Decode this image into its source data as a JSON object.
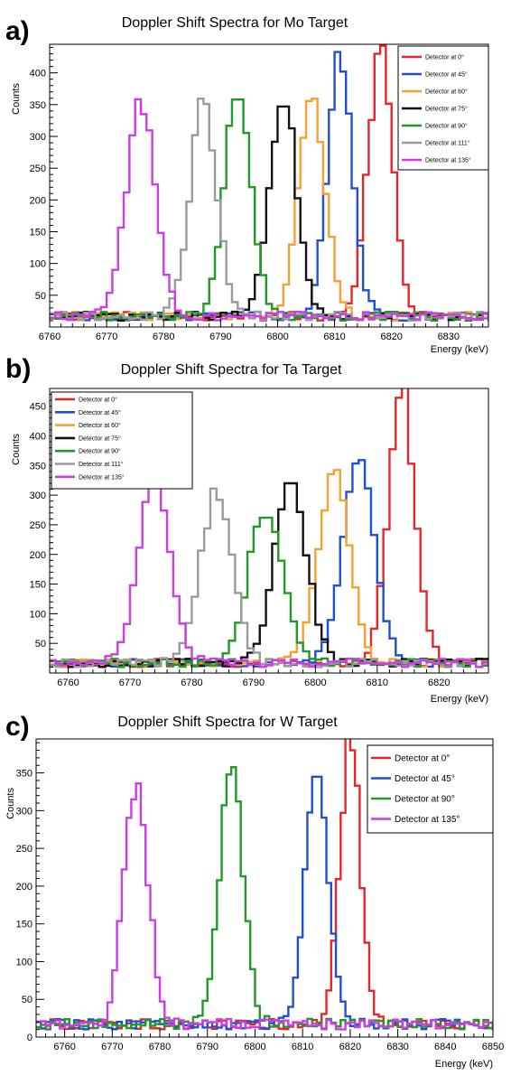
{
  "chart_data": [
    {
      "type": "line",
      "panel_label": "a)",
      "title": "Doppler Shift Spectra for Mo Target",
      "xlabel": "Energy (keV)",
      "ylabel": "Counts",
      "xlim": [
        6760,
        6837
      ],
      "ylim": [
        0,
        445
      ],
      "bin_width": 1,
      "x_ticks": [
        6760,
        6770,
        6780,
        6790,
        6800,
        6810,
        6820,
        6830
      ],
      "y_ticks": [
        50,
        100,
        150,
        200,
        250,
        300,
        350,
        400
      ],
      "legend": "top-right",
      "legend_font": 7,
      "grid": false,
      "series": [
        {
          "name": "Detector at 0°",
          "color": "#e8252a",
          "peak_center": 6818,
          "peak_height": 430,
          "sigma": 2.2
        },
        {
          "name": "Detector at 45°",
          "color": "#1e4fd6",
          "peak_center": 6811,
          "peak_height": 402,
          "sigma": 2.2
        },
        {
          "name": "Detector at 60°",
          "color": "#f7a030",
          "peak_center": 6806,
          "peak_height": 337,
          "sigma": 2.4
        },
        {
          "name": "Detector at 75°",
          "color": "#111111",
          "peak_center": 6801,
          "peak_height": 347,
          "sigma": 2.4
        },
        {
          "name": "Detector at 90°",
          "color": "#1f9a24",
          "peak_center": 6793,
          "peak_height": 358,
          "sigma": 2.4
        },
        {
          "name": "Detector at 111°",
          "color": "#9a9a9a",
          "peak_center": 6787,
          "peak_height": 343,
          "sigma": 2.4
        },
        {
          "name": "Detector at 135°",
          "color": "#cc3de8",
          "peak_center": 6776,
          "peak_height": 335,
          "sigma": 2.6
        }
      ]
    },
    {
      "type": "line",
      "panel_label": "b)",
      "title": "Doppler Shift Spectra for Ta Target",
      "xlabel": "Energy (keV)",
      "ylabel": "Counts",
      "xlim": [
        6757,
        6828
      ],
      "ylim": [
        0,
        480
      ],
      "bin_width": 1,
      "x_ticks": [
        6760,
        6770,
        6780,
        6790,
        6800,
        6810,
        6820
      ],
      "y_ticks": [
        50,
        100,
        150,
        200,
        250,
        300,
        350,
        400,
        450
      ],
      "legend": "top-left",
      "legend_font": 7,
      "grid": false,
      "series": [
        {
          "name": "Detector at 0°",
          "color": "#e8252a",
          "peak_center": 6814,
          "peak_height": 462,
          "sigma": 2.2
        },
        {
          "name": "Detector at 45°",
          "color": "#1e4fd6",
          "peak_center": 6807,
          "peak_height": 343,
          "sigma": 2.6
        },
        {
          "name": "Detector at 60°",
          "color": "#f7a030",
          "peak_center": 6803,
          "peak_height": 320,
          "sigma": 2.6
        },
        {
          "name": "Detector at 75°",
          "color": "#111111",
          "peak_center": 6796,
          "peak_height": 320,
          "sigma": 2.6
        },
        {
          "name": "Detector at 90°",
          "color": "#1f9a24",
          "peak_center": 6792,
          "peak_height": 262,
          "sigma": 2.8
        },
        {
          "name": "Detector at 111°",
          "color": "#9a9a9a",
          "peak_center": 6784,
          "peak_height": 292,
          "sigma": 2.6
        },
        {
          "name": "Detector at 135°",
          "color": "#cc3de8",
          "peak_center": 6774,
          "peak_height": 315,
          "sigma": 2.6
        }
      ]
    },
    {
      "type": "line",
      "panel_label": "c)",
      "title": "Doppler Shift Spectra for W Target",
      "xlabel": "Energy (keV)",
      "ylabel": "Counts",
      "xlim": [
        6754,
        6850
      ],
      "ylim": [
        0,
        395
      ],
      "bin_width": 1,
      "x_ticks": [
        6760,
        6770,
        6780,
        6790,
        6800,
        6810,
        6820,
        6830,
        6840,
        6850
      ],
      "y_ticks": [
        0,
        50,
        100,
        150,
        200,
        250,
        300,
        350
      ],
      "legend": "top-right",
      "legend_font": 10,
      "grid": false,
      "series": [
        {
          "name": "Detector at 0°",
          "color": "#e8252a",
          "peak_center": 6820,
          "peak_height": 380,
          "sigma": 2.2
        },
        {
          "name": "Detector at 45°",
          "color": "#1e4fd6",
          "peak_center": 6813,
          "peak_height": 345,
          "sigma": 2.4
        },
        {
          "name": "Detector at 90°",
          "color": "#1f9a24",
          "peak_center": 6795,
          "peak_height": 342,
          "sigma": 2.5
        },
        {
          "name": "Detector at 135°",
          "color": "#cc3de8",
          "peak_center": 6775,
          "peak_height": 315,
          "sigma": 2.6
        }
      ]
    }
  ]
}
